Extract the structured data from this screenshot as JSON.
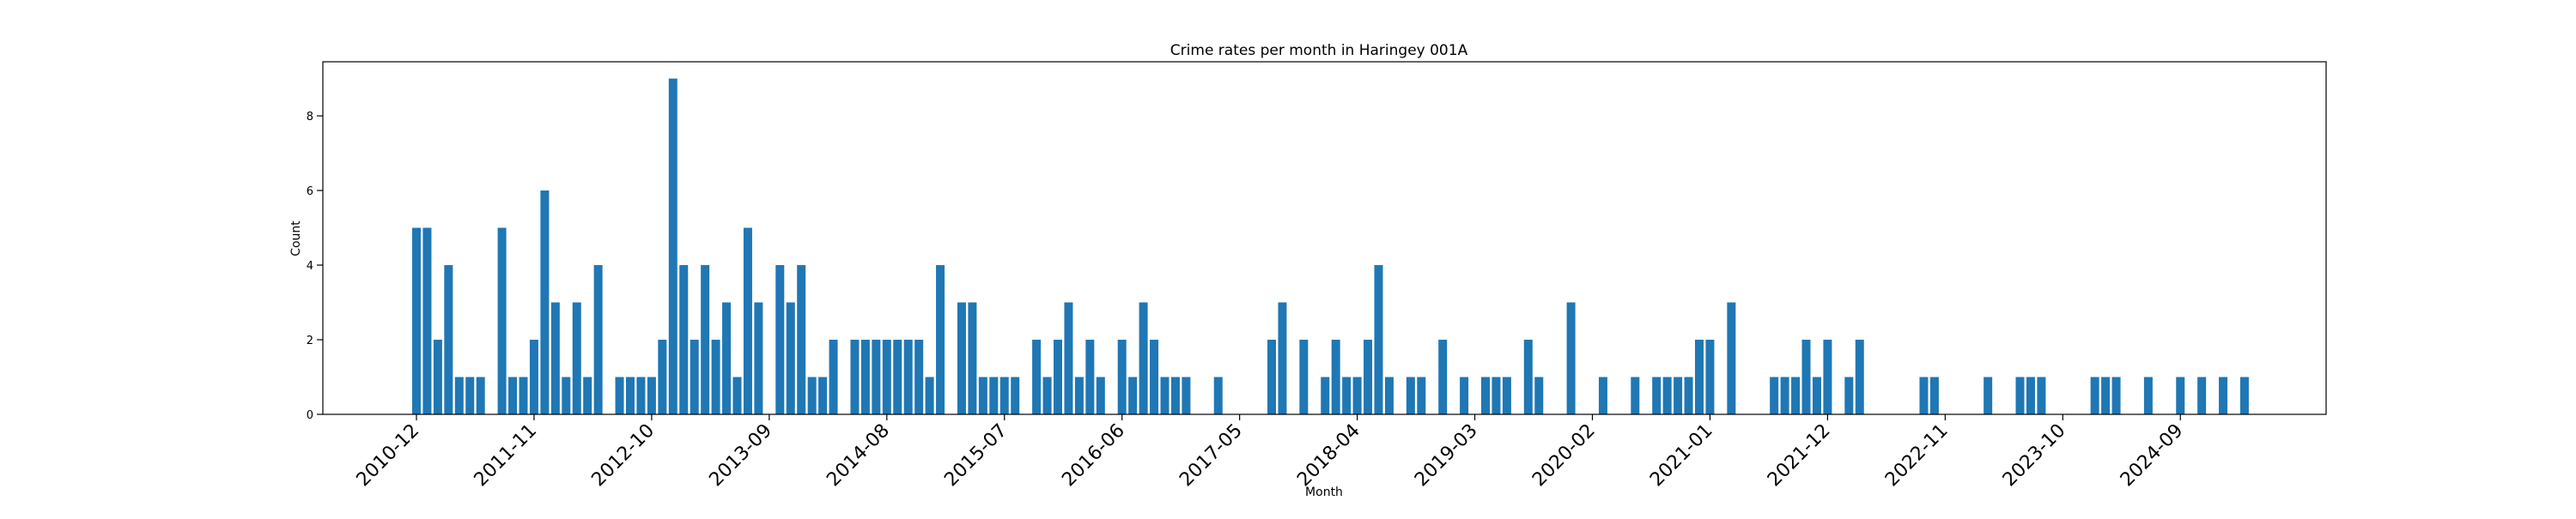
{
  "chart_data": {
    "type": "bar",
    "title": "Crime rates per month in Haringey 001A",
    "xlabel": "Month",
    "ylabel": "Count",
    "ylim": [
      0,
      9.45
    ],
    "yticks": [
      0,
      2,
      4,
      6,
      8
    ],
    "xticks": [
      "2010-12",
      "2011-11",
      "2012-10",
      "2013-09",
      "2014-08",
      "2015-07",
      "2016-06",
      "2017-05",
      "2018-04",
      "2019-03",
      "2020-02",
      "2021-01",
      "2021-12",
      "2022-11",
      "2023-10",
      "2024-09"
    ],
    "grid": false,
    "legend": "none",
    "bar_color": "#1f77b4",
    "categories": [
      "2010-12",
      "2011-01",
      "2011-02",
      "2011-03",
      "2011-04",
      "2011-05",
      "2011-06",
      "2011-08",
      "2011-09",
      "2011-10",
      "2011-11",
      "2011-12",
      "2012-01",
      "2012-02",
      "2012-03",
      "2012-04",
      "2012-05",
      "2012-07",
      "2012-08",
      "2012-09",
      "2012-10",
      "2012-11",
      "2012-12",
      "2013-01",
      "2013-02",
      "2013-03",
      "2013-04",
      "2013-05",
      "2013-06",
      "2013-07",
      "2013-08",
      "2013-10",
      "2013-11",
      "2013-12",
      "2014-01",
      "2014-02",
      "2014-03",
      "2014-05",
      "2014-06",
      "2014-07",
      "2014-08",
      "2014-09",
      "2014-10",
      "2014-11",
      "2014-12",
      "2015-01",
      "2015-03",
      "2015-04",
      "2015-05",
      "2015-06",
      "2015-07",
      "2015-08",
      "2015-10",
      "2015-11",
      "2015-12",
      "2016-01",
      "2016-02",
      "2016-03",
      "2016-04",
      "2016-06",
      "2016-07",
      "2016-08",
      "2016-09",
      "2016-10",
      "2016-11",
      "2016-12",
      "2017-03",
      "2017-08",
      "2017-09",
      "2017-11",
      "2018-01",
      "2018-02",
      "2018-03",
      "2018-04",
      "2018-05",
      "2018-06",
      "2018-07",
      "2018-09",
      "2018-10",
      "2018-12",
      "2019-02",
      "2019-04",
      "2019-05",
      "2019-06",
      "2019-08",
      "2019-09",
      "2019-12",
      "2020-03",
      "2020-09",
      "2020-06",
      "2020-08",
      "2020-10",
      "2020-11",
      "2020-12",
      "2021-01",
      "2021-03",
      "2021-07",
      "2021-08",
      "2021-09",
      "2021-10",
      "2021-11",
      "2021-12",
      "2022-02",
      "2022-03",
      "2022-09",
      "2022-10",
      "2023-03",
      "2023-06",
      "2023-07",
      "2023-08",
      "2024-01",
      "2024-02",
      "2024-03",
      "2024-06",
      "2024-09",
      "2024-11",
      "2025-01",
      "2025-03"
    ],
    "series": [
      {
        "values": [
          5,
          5,
          2,
          4,
          1,
          1,
          1,
          5,
          1,
          1,
          2,
          6,
          3,
          1,
          3,
          1,
          4,
          1,
          1,
          1,
          1,
          2,
          9,
          4,
          2,
          4,
          2,
          3,
          1,
          5,
          3,
          4,
          3,
          4,
          1,
          1,
          2,
          2,
          2,
          2,
          2,
          2,
          2,
          2,
          1,
          4,
          3,
          3,
          1,
          1,
          1,
          1,
          2,
          1,
          2,
          3,
          1,
          2,
          1,
          2,
          1,
          3,
          2,
          1,
          1,
          1,
          1,
          2,
          3,
          2,
          1,
          2,
          1,
          1,
          2,
          4,
          1,
          1,
          1,
          2,
          1,
          1,
          1,
          1,
          2,
          1,
          3,
          1,
          1,
          1,
          1,
          1,
          1,
          2,
          2,
          3,
          1,
          1,
          1,
          2,
          1,
          2,
          1,
          2,
          1,
          1,
          1,
          1,
          1,
          1,
          1,
          1,
          1,
          1,
          1,
          1,
          1,
          1
        ]
      }
    ]
  }
}
